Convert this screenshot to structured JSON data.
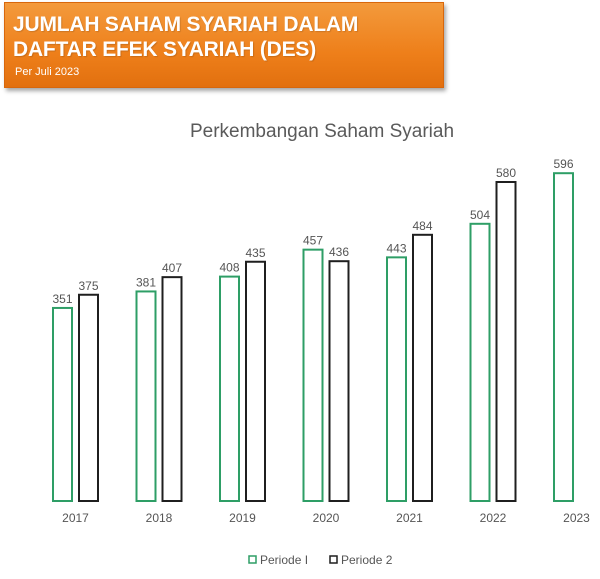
{
  "header": {
    "title": "JUMLAH SAHAM SYARIAH DALAM\nDAFTAR EFEK SYARIAH (DES)",
    "subtitle": "Per Juli 2023",
    "color": "#ee7f1a"
  },
  "chart_data": {
    "type": "bar",
    "title": "Perkembangan Saham Syariah",
    "categories": [
      "2017",
      "2018",
      "2019",
      "2020",
      "2021",
      "2022",
      "2023"
    ],
    "series": [
      {
        "name": "Periode I",
        "values": [
          351,
          381,
          408,
          457,
          443,
          504,
          596
        ],
        "color": "#2e9e66"
      },
      {
        "name": "Periode 2",
        "values": [
          375,
          407,
          435,
          436,
          484,
          580,
          null
        ],
        "color": "#1f1f1f"
      }
    ],
    "ylim": [
      0,
      650
    ],
    "grid": false,
    "legend": "bottom-center"
  }
}
